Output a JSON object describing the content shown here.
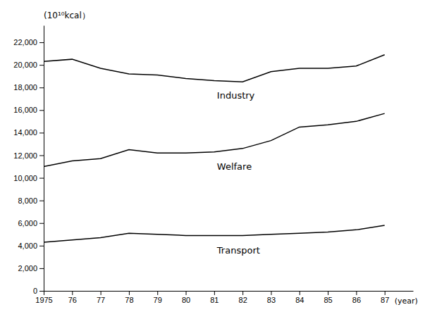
{
  "chart_data": {
    "type": "line",
    "x_label": "(year)",
    "y_label": "(10¹⁰kcal）",
    "x": [
      1975,
      1976,
      1977,
      1978,
      1979,
      1980,
      1981,
      1982,
      1983,
      1984,
      1985,
      1986,
      1987
    ],
    "series": [
      {
        "name": "Industry",
        "color": "#000000",
        "values": [
          20300,
          20500,
          19700,
          19200,
          19100,
          18800,
          18600,
          18500,
          19400,
          19700,
          19700,
          19900,
          20900
        ]
      },
      {
        "name": "Welfare",
        "color": "#000000",
        "values": [
          11000,
          11500,
          11700,
          12500,
          12200,
          12200,
          12300,
          12600,
          13300,
          14500,
          14700,
          15000,
          15700
        ]
      },
      {
        "name": "Transport",
        "color": "#000000",
        "values": [
          4300,
          4500,
          4700,
          5100,
          5000,
          4900,
          4900,
          4900,
          5000,
          5100,
          5200,
          5400,
          5800
        ]
      }
    ],
    "xlim": [
      1975,
      1988
    ],
    "xticks": [
      1975,
      {
        "value": 1976,
        "label": "76"
      },
      {
        "value": 1977,
        "label": "77"
      },
      {
        "value": 1978,
        "label": "78"
      },
      {
        "value": 1979,
        "label": "79"
      },
      {
        "value": 1980,
        "label": "80"
      },
      {
        "value": 1981,
        "label": "81"
      },
      {
        "value": 1982,
        "label": "82"
      },
      {
        "value": 1983,
        "label": "83"
      },
      {
        "value": 1984,
        "label": "84"
      },
      {
        "value": 1985,
        "label": "85"
      },
      {
        "value": 1986,
        "label": "86"
      },
      {
        "value": 1987,
        "label": "87"
      }
    ],
    "ylim": [
      0,
      23500
    ],
    "yticks": [
      0,
      {
        "value": 2000,
        "label": "2,000"
      },
      {
        "value": 4000,
        "label": "4,000"
      },
      {
        "value": 6000,
        "label": "6,000"
      },
      {
        "value": 8000,
        "label": "8,000"
      },
      {
        "value": 10000,
        "label": "10,000"
      },
      {
        "value": 12000,
        "label": "12,000"
      },
      {
        "value": 14000,
        "label": "14,000"
      },
      {
        "value": 16000,
        "label": "16,000"
      },
      {
        "value": 18000,
        "label": "18,000"
      },
      {
        "value": 20000,
        "label": "20,000"
      },
      {
        "value": 22000,
        "label": "22,000"
      }
    ],
    "grid": false
  }
}
